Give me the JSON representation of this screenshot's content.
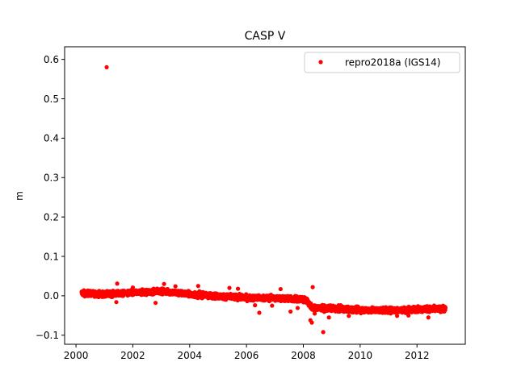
{
  "chart_data": {
    "type": "scatter",
    "title": "CASP V",
    "xlabel": "",
    "ylabel": "m",
    "xlim": [
      1999.6,
      2013.7
    ],
    "ylim": [
      -0.123,
      0.632
    ],
    "x_ticks": [
      2000,
      2002,
      2004,
      2006,
      2008,
      2010,
      2012
    ],
    "x_tick_labels": [
      "2000",
      "2002",
      "2004",
      "2006",
      "2008",
      "2010",
      "2012"
    ],
    "y_ticks": [
      -0.1,
      0.0,
      0.1,
      0.2,
      0.3,
      0.4,
      0.5,
      0.6
    ],
    "y_tick_labels": [
      "−0.1",
      "0.0",
      "0.1",
      "0.2",
      "0.3",
      "0.4",
      "0.5",
      "0.6"
    ],
    "grid": false,
    "legend_position": "top-right",
    "series": [
      {
        "name": "repro2018a (IGS14)",
        "color": "#ff0000",
        "marker": "circle",
        "trend": [
          [
            2000.2,
            0.007
          ],
          [
            2001.0,
            0.004
          ],
          [
            2002.0,
            0.007
          ],
          [
            2003.0,
            0.012
          ],
          [
            2004.0,
            0.004
          ],
          [
            2005.0,
            -0.001
          ],
          [
            2006.0,
            -0.005
          ],
          [
            2007.0,
            -0.006
          ],
          [
            2008.1,
            -0.01
          ],
          [
            2008.3,
            -0.03
          ],
          [
            2009.0,
            -0.032
          ],
          [
            2010.0,
            -0.036
          ],
          [
            2011.0,
            -0.037
          ],
          [
            2012.0,
            -0.034
          ],
          [
            2013.0,
            -0.033
          ]
        ],
        "outliers": [
          [
            2001.08,
            0.58
          ],
          [
            2001.45,
            0.031
          ],
          [
            2001.42,
            -0.016
          ],
          [
            2002.0,
            0.021
          ],
          [
            2002.8,
            -0.018
          ],
          [
            2003.1,
            0.03
          ],
          [
            2003.5,
            0.024
          ],
          [
            2004.3,
            0.025
          ],
          [
            2005.4,
            0.02
          ],
          [
            2005.7,
            0.018
          ],
          [
            2006.45,
            -0.043
          ],
          [
            2006.3,
            -0.024
          ],
          [
            2006.9,
            -0.025
          ],
          [
            2007.55,
            -0.04
          ],
          [
            2007.2,
            0.017
          ],
          [
            2007.8,
            -0.031
          ],
          [
            2008.33,
            0.022
          ],
          [
            2008.25,
            -0.062
          ],
          [
            2008.3,
            -0.068
          ],
          [
            2008.7,
            -0.092
          ],
          [
            2008.4,
            -0.045
          ],
          [
            2008.9,
            -0.055
          ],
          [
            2009.6,
            -0.051
          ],
          [
            2011.3,
            -0.051
          ],
          [
            2011.7,
            -0.05
          ],
          [
            2012.4,
            -0.055
          ]
        ]
      }
    ]
  }
}
